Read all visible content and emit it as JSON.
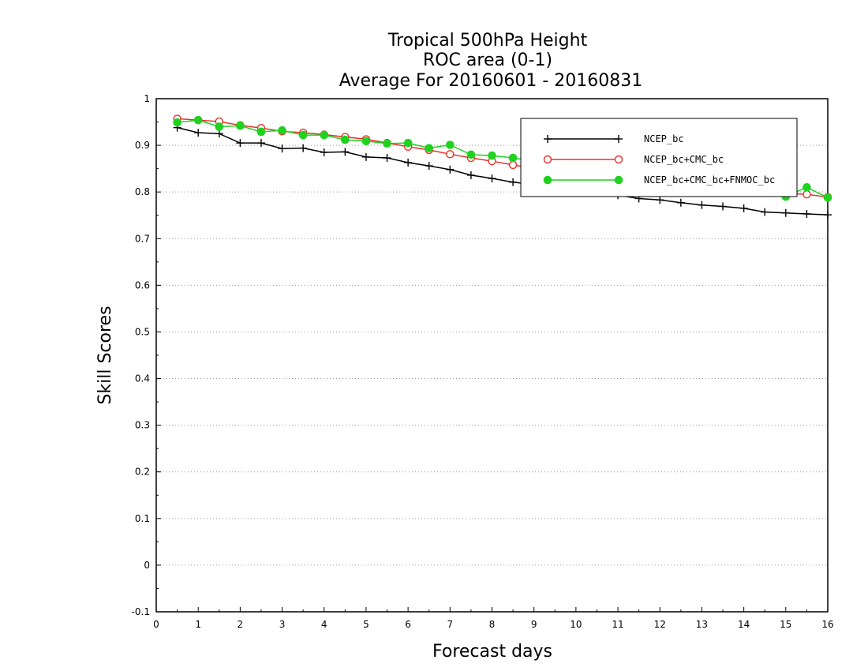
{
  "chart_data": {
    "type": "line",
    "title": [
      "Tropical 500hPa Height",
      "ROC area (0-1)",
      "Average For 20160601 - 20160831"
    ],
    "xlabel": "Forecast days",
    "ylabel": "Skill Scores",
    "xlim": [
      0,
      16
    ],
    "ylim": [
      -0.1,
      1
    ],
    "xticks": [
      0,
      1,
      2,
      3,
      4,
      5,
      6,
      7,
      8,
      9,
      10,
      11,
      12,
      13,
      14,
      15,
      16
    ],
    "yticks": [
      -0.1,
      0,
      0.1,
      0.2,
      0.3,
      0.4,
      0.5,
      0.6,
      0.7,
      0.8,
      0.9,
      1
    ],
    "ytick_labels": [
      "-0.1",
      "0",
      "0.1",
      "0.2",
      "0.3",
      "0.4",
      "0.5",
      "0.6",
      "0.7",
      "0.8",
      "0.9",
      "1"
    ],
    "grid": "horizontal dotted",
    "legend_position": "top-right",
    "x": [
      0.5,
      1,
      1.5,
      2,
      2.5,
      3,
      3.5,
      4,
      4.5,
      5,
      5.5,
      6,
      6.5,
      7,
      7.5,
      8,
      8.5,
      9,
      9.5,
      10,
      10.5,
      11,
      11.5,
      12,
      12.5,
      13,
      13.5,
      14,
      14.5,
      15,
      15.5,
      16
    ],
    "series": [
      {
        "name": "NCEP_bc",
        "color": "#000000",
        "marker": "plus",
        "values": [
          0.938,
          0.927,
          0.925,
          0.905,
          0.905,
          0.893,
          0.894,
          0.885,
          0.886,
          0.875,
          0.873,
          0.863,
          0.856,
          0.848,
          0.836,
          0.829,
          0.821,
          0.816,
          0.811,
          0.805,
          0.799,
          0.793,
          0.786,
          0.783,
          0.777,
          0.772,
          0.769,
          0.765,
          0.757,
          0.755,
          0.753,
          0.751
        ]
      },
      {
        "name": "NCEP_bc+CMC_bc",
        "color": "#e8302a",
        "marker": "open-circle",
        "values": [
          0.957,
          0.954,
          0.951,
          0.943,
          0.937,
          0.93,
          0.927,
          0.923,
          0.918,
          0.913,
          0.905,
          0.897,
          0.89,
          0.881,
          0.873,
          0.866,
          0.858,
          0.85,
          0.845,
          0.839,
          0.832,
          0.826,
          0.822,
          0.818,
          0.814,
          0.81,
          0.806,
          0.803,
          0.8,
          0.797,
          0.795,
          0.789
        ]
      },
      {
        "name": "NCEP_bc+CMC_bc+FNMOC_bc",
        "color": "#1fd21f",
        "marker": "filled-circle",
        "values": [
          0.949,
          0.954,
          0.94,
          0.942,
          0.929,
          0.932,
          0.922,
          0.922,
          0.912,
          0.909,
          0.904,
          0.905,
          0.894,
          0.901,
          0.88,
          0.878,
          0.873,
          0.865,
          0.86,
          0.852,
          0.846,
          0.84,
          0.835,
          0.829,
          0.823,
          0.818,
          0.812,
          0.808,
          0.803,
          0.79,
          0.81,
          0.788
        ]
      }
    ]
  }
}
